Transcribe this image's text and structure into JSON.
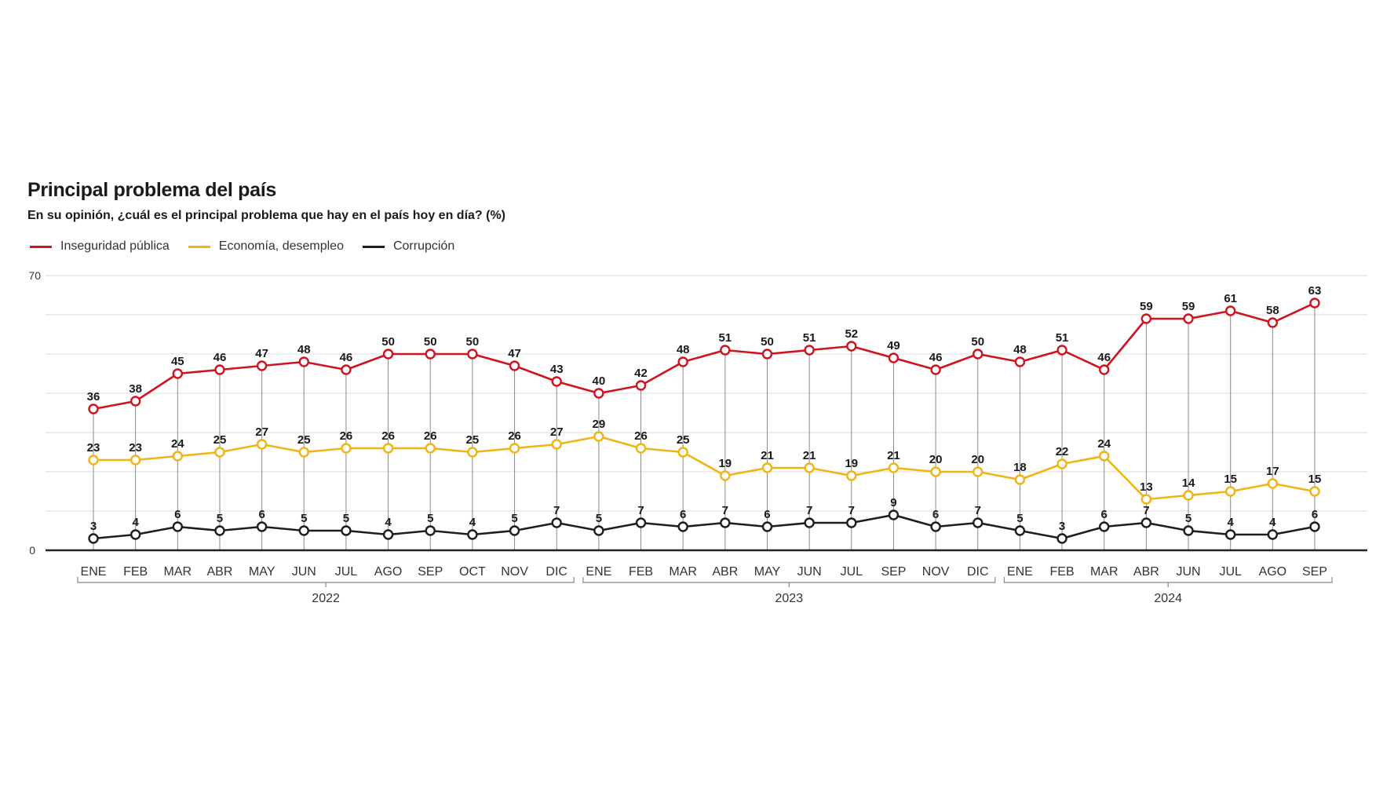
{
  "chart_data": {
    "type": "line",
    "title": "Principal problema del país",
    "subtitle": "En su opinión, ¿cuál es el principal problema que hay en el país hoy en día? (%)",
    "xlabel": "",
    "ylabel": "",
    "ylim": [
      0,
      70
    ],
    "y_ticks_labeled": [
      "0",
      "70"
    ],
    "gridlines": [
      10,
      20,
      30,
      40,
      50,
      60,
      70
    ],
    "grid": true,
    "legend_position": "top-left",
    "categories": [
      "ENE",
      "FEB",
      "MAR",
      "ABR",
      "MAY",
      "JUN",
      "JUL",
      "AGO",
      "SEP",
      "OCT",
      "NOV",
      "DIC",
      "ENE",
      "FEB",
      "MAR",
      "ABR",
      "MAY",
      "JUN",
      "JUL",
      "SEP",
      "NOV",
      "DIC",
      "ENE",
      "FEB",
      "MAR",
      "ABR",
      "JUN",
      "JUL",
      "AGO",
      "SEP"
    ],
    "year_groups": [
      {
        "label": "2022",
        "start": 0,
        "end": 11
      },
      {
        "label": "2023",
        "start": 12,
        "end": 21
      },
      {
        "label": "2024",
        "start": 22,
        "end": 29
      }
    ],
    "series": [
      {
        "name": "Inseguridad pública",
        "color": "#cf1420",
        "values": [
          36,
          38,
          45,
          46,
          47,
          48,
          46,
          50,
          50,
          50,
          47,
          43,
          40,
          42,
          48,
          51,
          50,
          51,
          52,
          49,
          46,
          50,
          48,
          51,
          46,
          59,
          59,
          61,
          58,
          63
        ]
      },
      {
        "name": "Economía, desempleo",
        "color": "#f0b414",
        "values": [
          23,
          23,
          24,
          25,
          27,
          25,
          26,
          26,
          26,
          25,
          26,
          27,
          29,
          26,
          25,
          19,
          21,
          21,
          19,
          21,
          20,
          20,
          18,
          22,
          24,
          13,
          14,
          15,
          17,
          15
        ]
      },
      {
        "name": "Corrupción",
        "color": "#1e1e1e",
        "values": [
          3,
          4,
          6,
          5,
          6,
          5,
          5,
          4,
          5,
          4,
          5,
          7,
          5,
          7,
          6,
          7,
          6,
          7,
          7,
          9,
          6,
          7,
          5,
          3,
          6,
          7,
          5,
          4,
          4,
          6
        ]
      }
    ]
  }
}
